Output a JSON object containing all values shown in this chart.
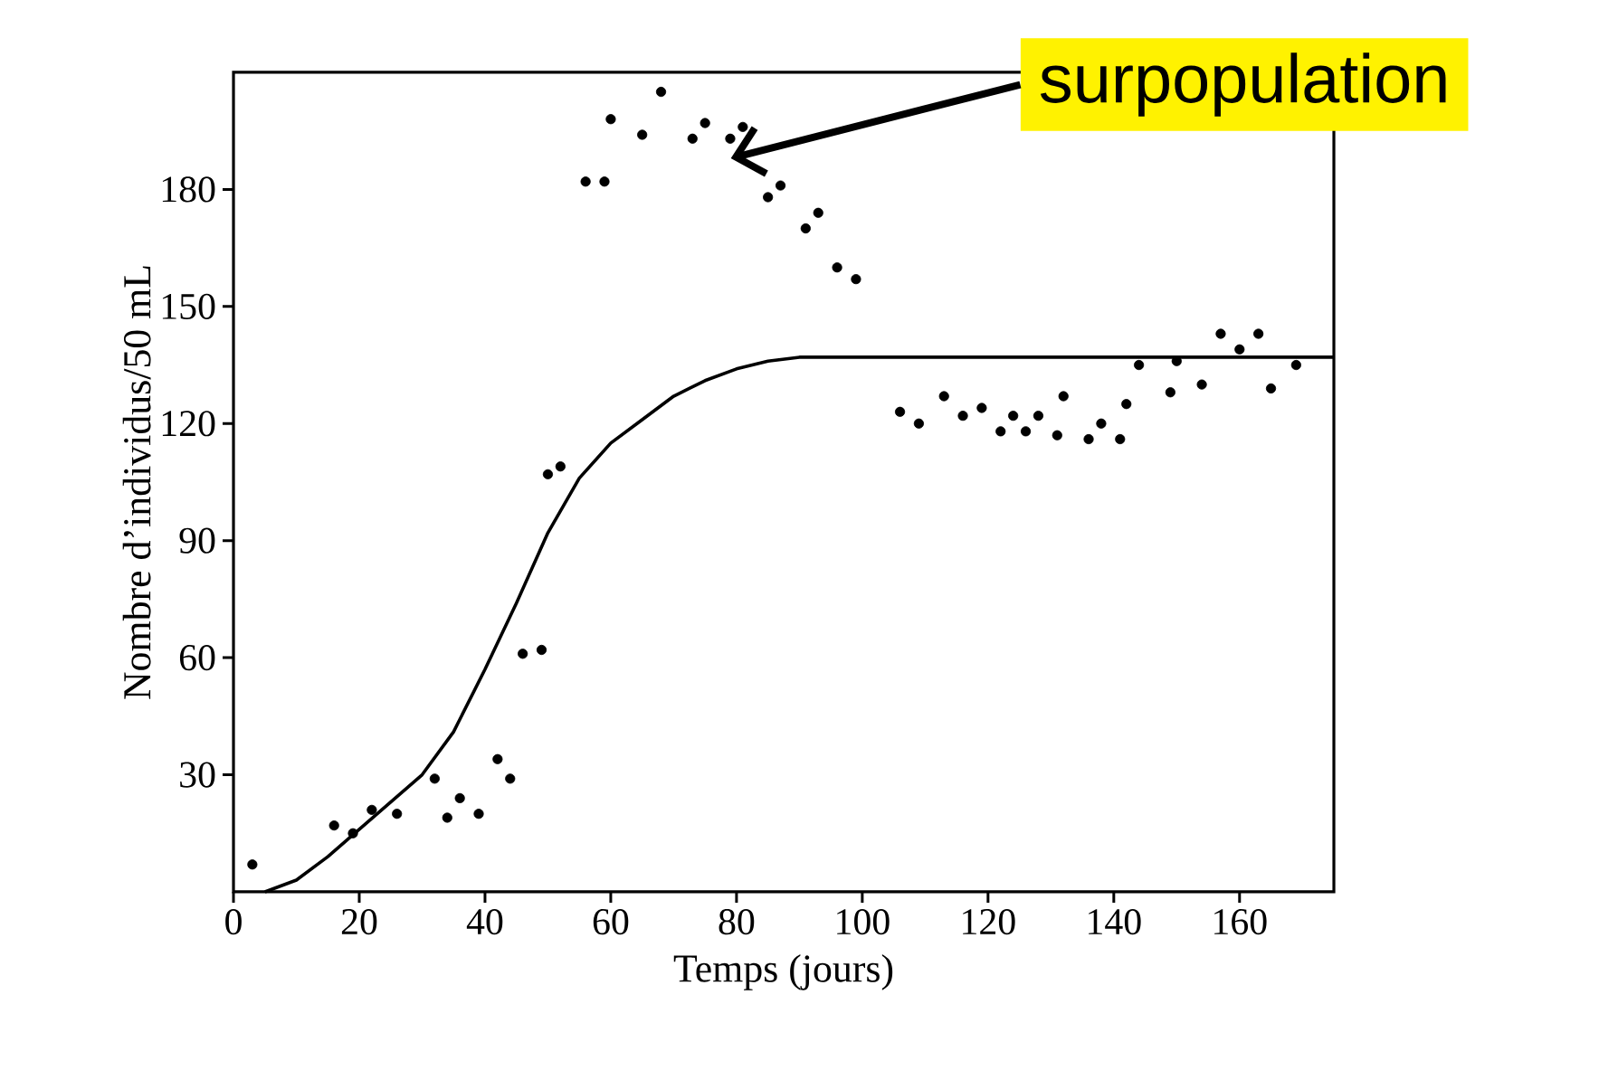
{
  "chart_data": {
    "type": "scatter",
    "xlabel": "Temps (jours)",
    "ylabel": "Nombre d’individus/50 mL",
    "xlim": [
      0,
      175
    ],
    "ylim": [
      0,
      210
    ],
    "xticks": [
      0,
      20,
      40,
      60,
      80,
      100,
      120,
      140,
      160
    ],
    "yticks": [
      30,
      60,
      90,
      120,
      150,
      180
    ],
    "annotations": [
      "surpopulation"
    ],
    "series": [
      {
        "color": "#000000",
        "marker": "circle",
        "x": [
          3,
          16,
          19,
          22,
          26,
          32,
          34,
          36,
          39,
          42,
          44,
          46,
          49,
          50,
          52,
          56,
          59,
          60,
          65,
          68,
          73,
          75,
          79,
          81,
          85,
          87,
          91,
          93,
          96,
          99,
          106,
          109,
          113,
          116,
          119,
          122,
          124,
          126,
          128,
          131,
          132,
          136,
          138,
          141,
          142,
          144,
          149,
          150,
          154,
          157,
          160,
          163,
          165,
          169
        ],
        "values": [
          7,
          17,
          15,
          21,
          20,
          29,
          19,
          24,
          20,
          34,
          29,
          61,
          62,
          107,
          109,
          182,
          182,
          198,
          194,
          205,
          193,
          197,
          193,
          196,
          178,
          181,
          170,
          174,
          160,
          157,
          123,
          120,
          127,
          122,
          124,
          118,
          122,
          118,
          122,
          117,
          127,
          116,
          120,
          116,
          125,
          135,
          128,
          136,
          130,
          143,
          139,
          143,
          129,
          135
        ]
      },
      {
        "type": "line",
        "color": "#000000",
        "marker": "none",
        "line_style": "solid",
        "x": [
          5,
          10,
          15,
          20,
          25,
          30,
          35,
          40,
          45,
          50,
          55,
          60,
          65,
          70,
          75,
          80,
          85,
          90,
          95,
          100,
          120,
          140,
          160,
          175
        ],
        "values": [
          0,
          3,
          9,
          16,
          23,
          30,
          41,
          57,
          74,
          92,
          106,
          115,
          121,
          127,
          131,
          134,
          136,
          137,
          137,
          137,
          137,
          137,
          137,
          137
        ]
      }
    ]
  }
}
